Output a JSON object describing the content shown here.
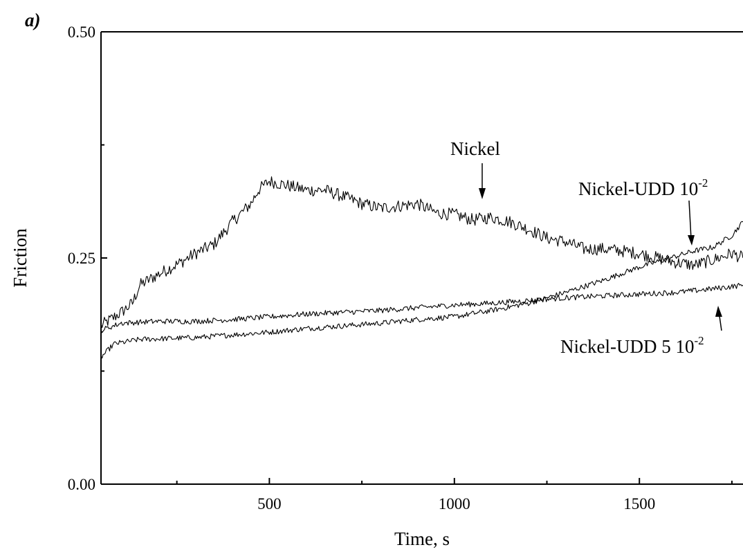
{
  "panel_label": "a)",
  "chart_data": {
    "type": "line",
    "title": "",
    "xlabel": "Time, s",
    "ylabel": "Friction",
    "xlim": [
      45,
      1780
    ],
    "ylim": [
      0.0,
      0.5
    ],
    "x_ticks": [
      500,
      1000,
      1500
    ],
    "x_tick_labels": [
      "500",
      "1000",
      "1500"
    ],
    "x_minor_ticks": [
      250,
      750,
      1250,
      1750
    ],
    "y_ticks": [
      0.0,
      0.25,
      0.5
    ],
    "y_tick_labels": [
      "0.00",
      "0.25",
      "0.50"
    ],
    "y_minor_ticks": [
      0.125,
      0.375
    ],
    "grid": false,
    "legend": "none",
    "line_color": "#000000",
    "series": [
      {
        "key": "nickel",
        "noise": 0.007,
        "points": [
          [
            45,
            0.175
          ],
          [
            100,
            0.19
          ],
          [
            130,
            0.2
          ],
          [
            150,
            0.22
          ],
          [
            200,
            0.232
          ],
          [
            260,
            0.245
          ],
          [
            300,
            0.255
          ],
          [
            350,
            0.265
          ],
          [
            400,
            0.29
          ],
          [
            450,
            0.31
          ],
          [
            470,
            0.325
          ],
          [
            500,
            0.335
          ],
          [
            550,
            0.33
          ],
          [
            600,
            0.325
          ],
          [
            650,
            0.325
          ],
          [
            700,
            0.318
          ],
          [
            750,
            0.31
          ],
          [
            800,
            0.305
          ],
          [
            900,
            0.31
          ],
          [
            950,
            0.3
          ],
          [
            1000,
            0.298
          ],
          [
            1050,
            0.292
          ],
          [
            1100,
            0.295
          ],
          [
            1150,
            0.29
          ],
          [
            1200,
            0.282
          ],
          [
            1250,
            0.272
          ],
          [
            1300,
            0.268
          ],
          [
            1350,
            0.26
          ],
          [
            1400,
            0.26
          ],
          [
            1450,
            0.258
          ],
          [
            1500,
            0.255
          ],
          [
            1550,
            0.25
          ],
          [
            1600,
            0.245
          ],
          [
            1650,
            0.242
          ],
          [
            1700,
            0.248
          ],
          [
            1750,
            0.255
          ],
          [
            1780,
            0.25
          ]
        ]
      },
      {
        "key": "nickel-udd-1e-2",
        "noise": 0.003,
        "points": [
          [
            45,
            0.14
          ],
          [
            80,
            0.155
          ],
          [
            150,
            0.16
          ],
          [
            300,
            0.162
          ],
          [
            400,
            0.165
          ],
          [
            500,
            0.168
          ],
          [
            600,
            0.172
          ],
          [
            700,
            0.175
          ],
          [
            800,
            0.178
          ],
          [
            900,
            0.182
          ],
          [
            1000,
            0.185
          ],
          [
            1100,
            0.192
          ],
          [
            1200,
            0.2
          ],
          [
            1300,
            0.212
          ],
          [
            1400,
            0.225
          ],
          [
            1500,
            0.24
          ],
          [
            1600,
            0.252
          ],
          [
            1650,
            0.258
          ],
          [
            1700,
            0.262
          ],
          [
            1750,
            0.275
          ],
          [
            1780,
            0.29
          ]
        ]
      },
      {
        "key": "nickel-udd-5e-2",
        "noise": 0.003,
        "points": [
          [
            45,
            0.17
          ],
          [
            100,
            0.178
          ],
          [
            200,
            0.18
          ],
          [
            300,
            0.18
          ],
          [
            400,
            0.182
          ],
          [
            500,
            0.185
          ],
          [
            600,
            0.188
          ],
          [
            700,
            0.19
          ],
          [
            800,
            0.192
          ],
          [
            900,
            0.195
          ],
          [
            1000,
            0.198
          ],
          [
            1100,
            0.2
          ],
          [
            1200,
            0.203
          ],
          [
            1300,
            0.206
          ],
          [
            1400,
            0.208
          ],
          [
            1500,
            0.21
          ],
          [
            1600,
            0.212
          ],
          [
            1700,
            0.216
          ],
          [
            1780,
            0.22
          ]
        ]
      }
    ],
    "annotations": [
      {
        "key": "nickel",
        "text": "Nickel",
        "sup": ""
      },
      {
        "key": "nickel-udd-1e-2",
        "text": "Nickel-UDD 10",
        "sup": "-2"
      },
      {
        "key": "nickel-udd-5e-2",
        "text": "Nickel-UDD 5 10",
        "sup": "-2"
      }
    ]
  }
}
